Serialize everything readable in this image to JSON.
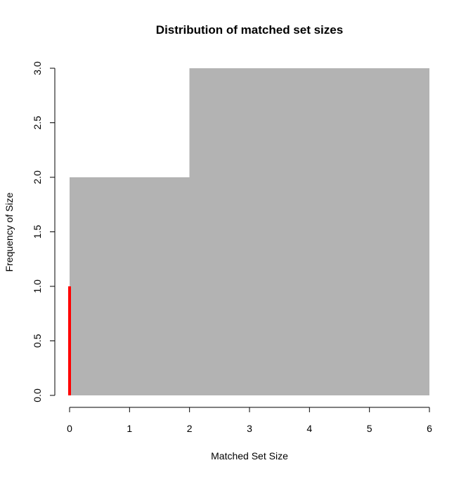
{
  "chart_data": {
    "type": "bar",
    "title": "Distribution of matched set sizes",
    "xlabel": "Matched Set Size",
    "ylabel": "Frequency of Size",
    "xlim": [
      0,
      6
    ],
    "ylim": [
      0,
      3
    ],
    "x_ticks": [
      0,
      1,
      2,
      3,
      4,
      5,
      6
    ],
    "y_ticks": [
      0,
      0.5,
      1,
      1.5,
      2,
      2.5,
      3
    ],
    "x_tick_labels": [
      "0",
      "1",
      "2",
      "3",
      "4",
      "5",
      "6"
    ],
    "y_tick_labels": [
      "0.0",
      "0.5",
      "1.0",
      "1.5",
      "2.0",
      "2.5",
      "3.0"
    ],
    "bins": [
      {
        "x_start": 0,
        "x_end": 2,
        "value": 2
      },
      {
        "x_start": 2,
        "x_end": 6,
        "value": 3
      }
    ],
    "highlight": {
      "x": 0,
      "value": 1,
      "color": "#ff0000"
    },
    "bar_color": "#b3b3b3",
    "grid": false
  }
}
